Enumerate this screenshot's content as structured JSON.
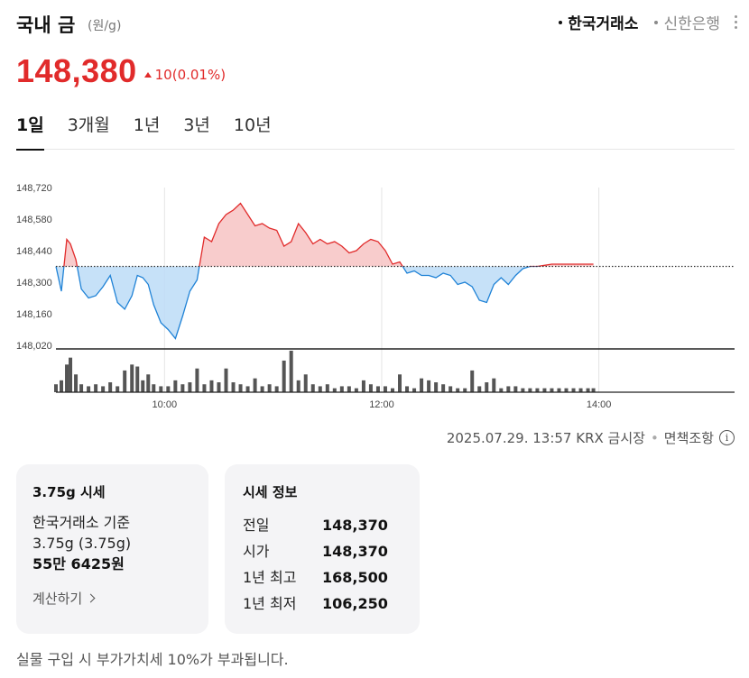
{
  "header": {
    "title": "국내 금",
    "unit": "(원/g)",
    "sources": [
      {
        "label": "한국거래소",
        "active": true
      },
      {
        "label": "신한은행",
        "active": false
      }
    ]
  },
  "quote": {
    "price": "148,380",
    "change": "10(0.01%)",
    "direction": "up",
    "color": "#e12b2b"
  },
  "periods": [
    "1일",
    "3개월",
    "1년",
    "3년",
    "10년"
  ],
  "active_period": "1일",
  "chart_data": {
    "type": "area",
    "baseline": 148370,
    "ylim": [
      148020,
      148720
    ],
    "y_ticks": [
      "148,720",
      "148,580",
      "148,440",
      "148,300",
      "148,160",
      "148,020"
    ],
    "x_ticks": [
      "10:00",
      "12:00",
      "14:00"
    ],
    "up_color": "#e12b2b",
    "down_color": "#1f82d6",
    "series": [
      {
        "x": [
          "09:00",
          "09:03",
          "09:06",
          "09:08",
          "09:11",
          "09:14",
          "09:18",
          "09:22",
          "09:26",
          "09:30",
          "09:34",
          "09:38",
          "09:42",
          "09:45",
          "09:48",
          "09:51",
          "09:54",
          "09:58",
          "10:02",
          "10:06",
          "10:10",
          "10:14",
          "10:18",
          "10:22",
          "10:26",
          "10:30",
          "10:34",
          "10:38",
          "10:42",
          "10:46",
          "10:50",
          "10:54",
          "10:58",
          "11:02",
          "11:06",
          "11:10",
          "11:14",
          "11:18",
          "11:22",
          "11:26",
          "11:30",
          "11:34",
          "11:38",
          "11:42",
          "11:46",
          "11:50",
          "11:54",
          "11:58",
          "12:02",
          "12:06",
          "12:10",
          "12:14",
          "12:18",
          "12:22",
          "12:26",
          "12:30",
          "12:34",
          "12:38",
          "12:42",
          "12:46",
          "12:50",
          "12:54",
          "12:58",
          "13:02",
          "13:06",
          "13:10",
          "13:14",
          "13:18",
          "13:22",
          "13:26",
          "13:30",
          "13:34",
          "13:38",
          "13:42",
          "13:46",
          "13:50",
          "13:54",
          "13:57"
        ],
        "values": [
          148370,
          148260,
          148490,
          148470,
          148400,
          148270,
          148230,
          148240,
          148280,
          148330,
          148210,
          148180,
          148240,
          148330,
          148320,
          148290,
          148200,
          148120,
          148090,
          148050,
          148150,
          148260,
          148310,
          148500,
          148480,
          148560,
          148600,
          148620,
          148650,
          148600,
          148550,
          148560,
          148540,
          148530,
          148460,
          148480,
          148560,
          148520,
          148470,
          148490,
          148470,
          148480,
          148460,
          148430,
          148440,
          148470,
          148490,
          148480,
          148440,
          148380,
          148390,
          148340,
          148350,
          148330,
          148330,
          148320,
          148340,
          148330,
          148290,
          148300,
          148280,
          148220,
          148210,
          148290,
          148320,
          148290,
          148330,
          148360,
          148370,
          148370,
          148375,
          148380,
          148380,
          148380,
          148380,
          148380,
          148380,
          148380
        ]
      }
    ],
    "volume": [
      8,
      12,
      28,
      35,
      18,
      8,
      6,
      8,
      6,
      10,
      6,
      22,
      28,
      26,
      12,
      18,
      8,
      6,
      6,
      12,
      8,
      10,
      24,
      8,
      12,
      10,
      24,
      10,
      8,
      6,
      14,
      6,
      8,
      6,
      32,
      42,
      12,
      18,
      8,
      6,
      8,
      4,
      6,
      6,
      4,
      12,
      8,
      6,
      6,
      4,
      18,
      6,
      4,
      14,
      12,
      10,
      8,
      6,
      4,
      4,
      22,
      6,
      10,
      14,
      4,
      6,
      6,
      4,
      4,
      4,
      4,
      4,
      4,
      4,
      4,
      4,
      4,
      4
    ]
  },
  "timestamp": {
    "datetime": "2025.07.29. 13:57 KRX 금시장",
    "disclaimer": "면책조항",
    "info_icon_glyph": "i"
  },
  "card_left": {
    "title": "3.75g 시세",
    "basis": "한국거래소 기준",
    "weight": "3.75g (3.75g)",
    "value": "55만 6425원",
    "link": "계산하기"
  },
  "card_right": {
    "title": "시세 정보",
    "rows": [
      {
        "label": "전일",
        "value": "148,370"
      },
      {
        "label": "시가",
        "value": "148,370"
      },
      {
        "label": "1년 최고",
        "value": "168,500"
      },
      {
        "label": "1년 최저",
        "value": "106,250"
      }
    ]
  },
  "footnote": "실물 구입 시 부가가치세 10%가 부과됩니다."
}
